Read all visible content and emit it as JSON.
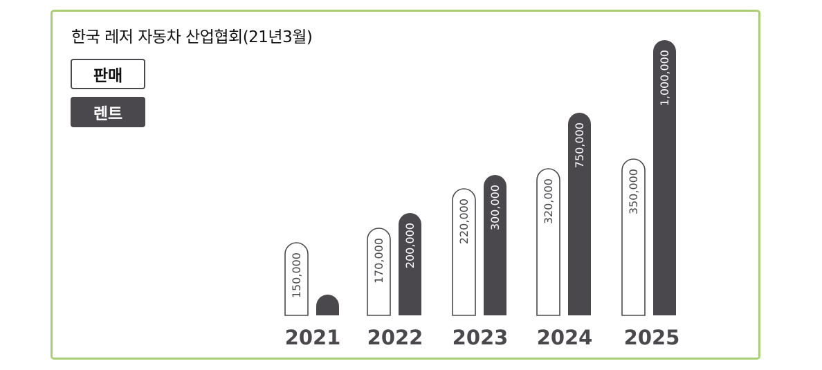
{
  "colors": {
    "border": "#a9cf72",
    "rent": "#4a484c",
    "sale_fill": "#ffffff",
    "sale_stroke": "#4a484c",
    "year_label": "#4a484c"
  },
  "chart_data": {
    "type": "bar",
    "title": "한국 레저 자동차 산업협회(21년3월)",
    "categories": [
      "2021",
      "2022",
      "2023",
      "2024",
      "2025"
    ],
    "series": [
      {
        "name": "판매",
        "values": [
          150000,
          170000,
          220000,
          320000,
          350000
        ],
        "labels": [
          "150,000",
          "170,000",
          "220,000",
          "320,000",
          "350,000"
        ]
      },
      {
        "name": "렌트",
        "values": [
          null,
          200000,
          300000,
          750000,
          1000000
        ],
        "labels": [
          "",
          "200,000",
          "300,000",
          "750,000",
          "1,000,000"
        ]
      }
    ],
    "legend": "top-left",
    "grid": false
  }
}
